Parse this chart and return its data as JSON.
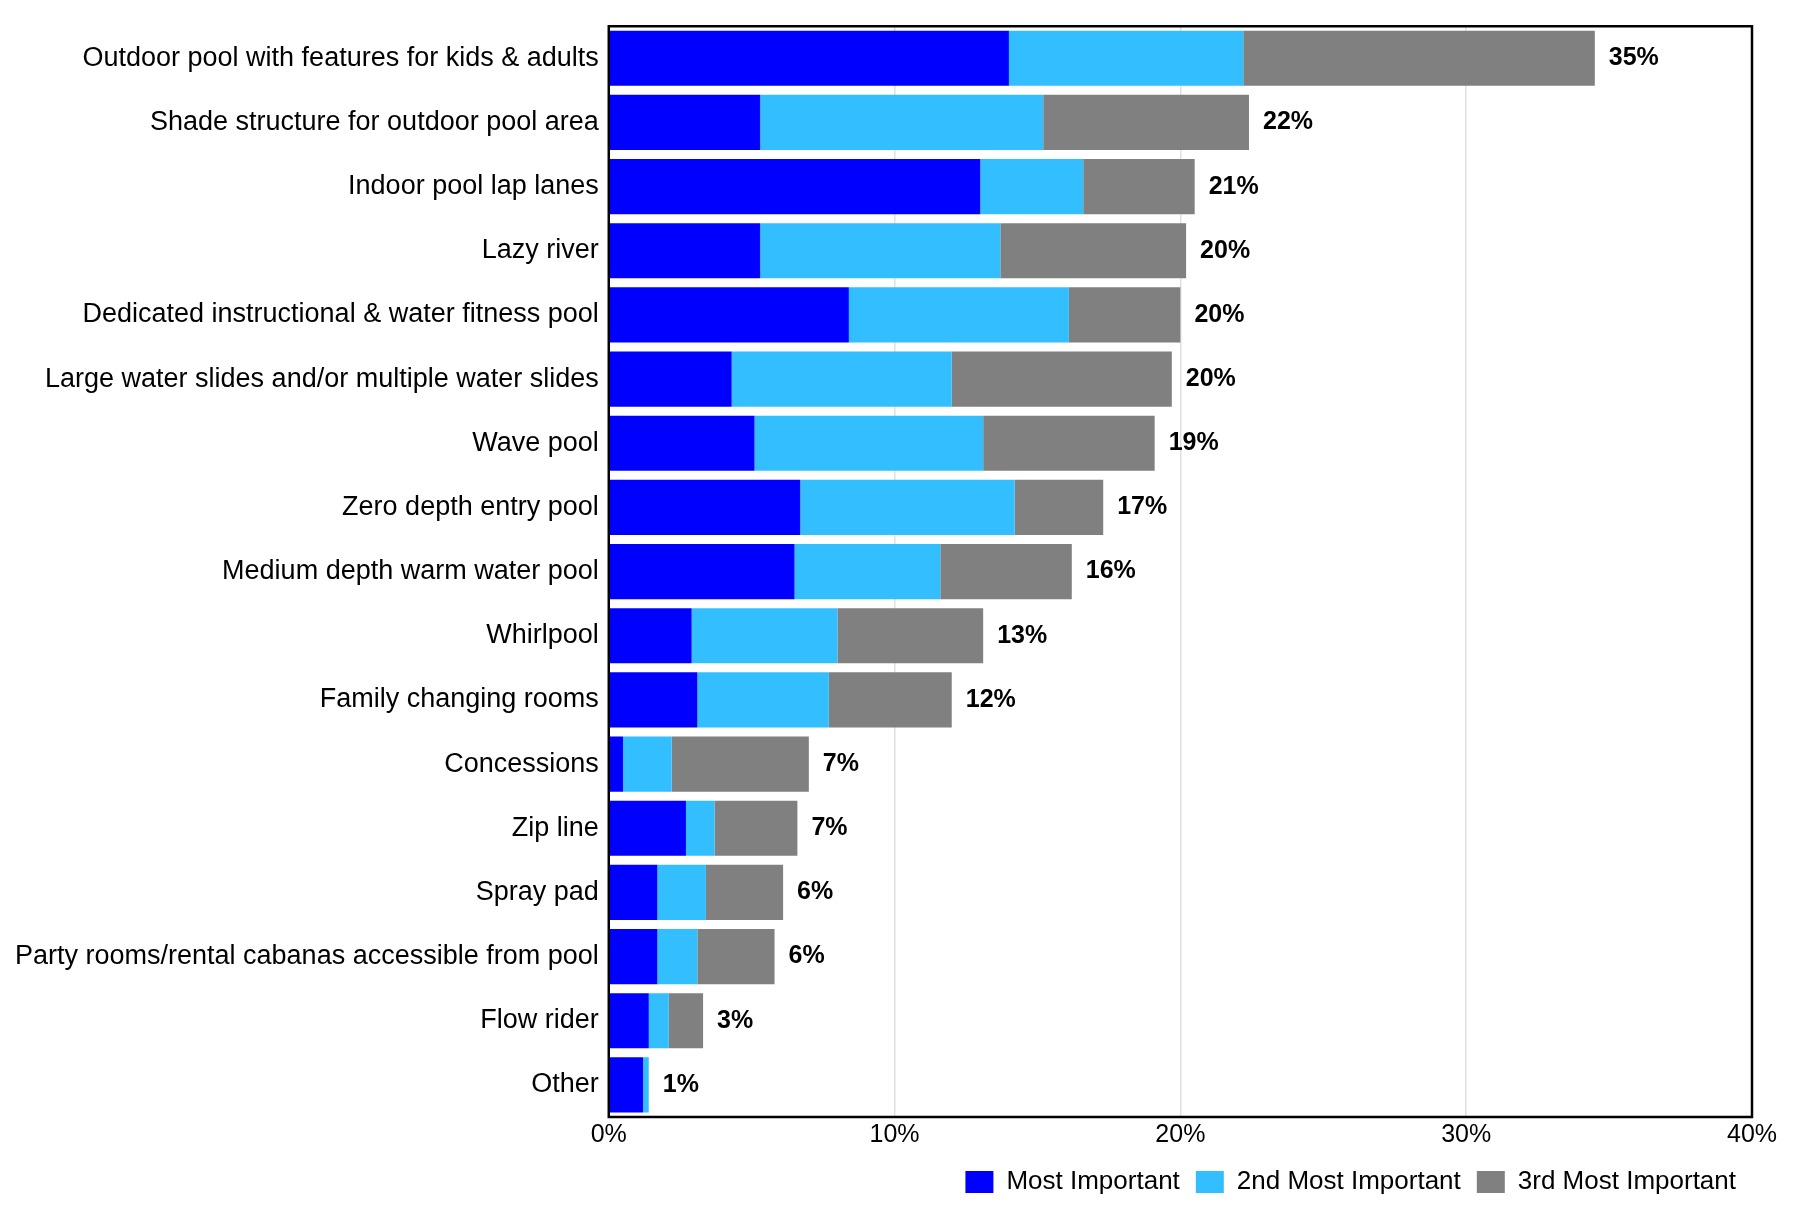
{
  "chart_data": {
    "type": "bar",
    "orientation": "horizontal",
    "stacked": true,
    "categories": [
      "Outdoor pool with features for kids & adults",
      "Shade structure for outdoor pool area",
      "Indoor pool lap lanes",
      "Lazy river",
      "Dedicated instructional & water fitness pool",
      "Large water slides and/or multiple water slides",
      "Wave pool",
      "Zero depth entry pool",
      "Medium depth warm water pool",
      "Whirlpool",
      "Family changing rooms",
      "Concessions",
      "Zip line",
      "Spray pad",
      "Party rooms/rental cabanas accessible from pool",
      "Flow rider",
      "Other"
    ],
    "series": [
      {
        "name": "Most Important",
        "color": "#0000ff",
        "values": [
          14.0,
          5.3,
          13.0,
          5.3,
          8.4,
          4.3,
          5.1,
          6.7,
          6.5,
          2.9,
          3.1,
          0.5,
          2.7,
          1.7,
          1.7,
          1.4,
          1.2
        ]
      },
      {
        "name": "2nd Most Important",
        "color": "#33bfff",
        "values": [
          8.2,
          9.9,
          3.6,
          8.4,
          7.7,
          7.7,
          8.0,
          7.5,
          5.1,
          5.1,
          4.6,
          1.7,
          1.0,
          1.7,
          1.4,
          0.7,
          0.2
        ]
      },
      {
        "name": "3rd Most Important",
        "color": "#808080",
        "values": [
          12.3,
          7.2,
          3.9,
          6.5,
          3.9,
          7.7,
          6.0,
          3.1,
          4.6,
          5.1,
          4.3,
          4.8,
          2.9,
          2.7,
          2.7,
          1.2,
          0
        ]
      }
    ],
    "totals": [
      "35%",
      "22%",
      "21%",
      "20%",
      "20%",
      "20%",
      "19%",
      "17%",
      "16%",
      "13%",
      "12%",
      "7%",
      "7%",
      "6%",
      "6%",
      "3%",
      "1%"
    ],
    "xlim": [
      0,
      40
    ],
    "xticks": [
      {
        "value": 0,
        "label": "0%"
      },
      {
        "value": 10,
        "label": "10%"
      },
      {
        "value": 20,
        "label": "20%"
      },
      {
        "value": 30,
        "label": "30%"
      },
      {
        "value": 40,
        "label": "40%"
      }
    ],
    "grid": "x",
    "legend": "bottom right"
  }
}
